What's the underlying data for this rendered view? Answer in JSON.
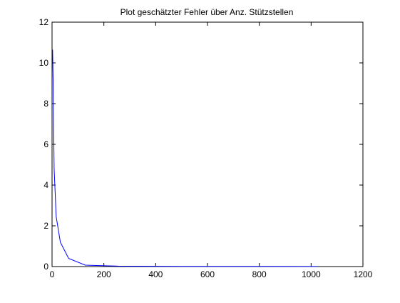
{
  "chart_data": {
    "type": "line",
    "title": "Plot geschätzter Fehler über Anz. Stützstellen",
    "xlabel": "",
    "ylabel": "",
    "xlim": [
      0,
      1200
    ],
    "ylim": [
      0,
      12
    ],
    "xticks": [
      0,
      200,
      400,
      600,
      800,
      1000,
      1200
    ],
    "yticks": [
      0,
      2,
      4,
      6,
      8,
      10,
      12
    ],
    "grid": false,
    "legend": "none",
    "series": [
      {
        "color": "#0000ff",
        "x": [
          2,
          4,
          8,
          16,
          32,
          64,
          128,
          256,
          512,
          1024
        ],
        "y": [
          10.65,
          9.3,
          4.8,
          2.45,
          1.2,
          0.4,
          0.07,
          0.02,
          0.01,
          0.005
        ]
      }
    ]
  }
}
